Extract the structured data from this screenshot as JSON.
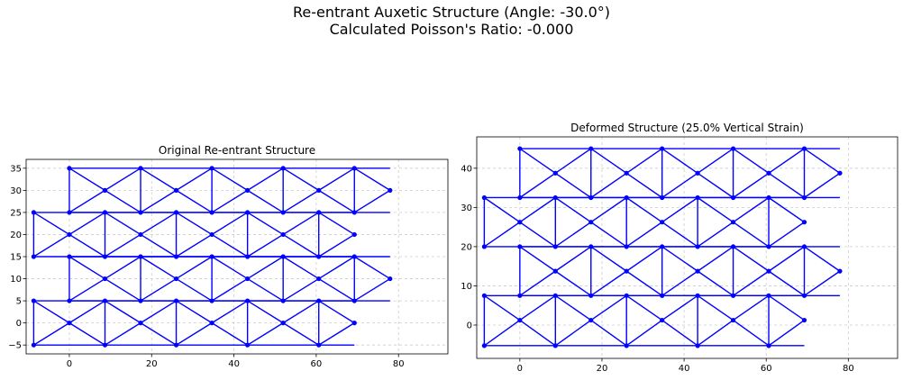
{
  "figure": {
    "title_line1": "Re-entrant Auxetic Structure (Angle: -30.0°)",
    "title_line2": "Calculated Poisson's Ratio: -0.000"
  },
  "colors": {
    "structure": "#0000ff",
    "grid": "#cccccc",
    "axis": "#000000"
  },
  "chart_data": [
    {
      "type": "scatter",
      "title": "Original Re-entrant Structure",
      "xlabel": "",
      "ylabel": "",
      "xlim": [
        -10.5,
        92
      ],
      "ylim": [
        -7,
        37
      ],
      "xticks": [
        0,
        20,
        40,
        60,
        80
      ],
      "yticks": [
        -5,
        0,
        5,
        10,
        15,
        20,
        25,
        30,
        35
      ],
      "grid": true,
      "grid_style": "dashed",
      "rows": [
        {
          "base": -5,
          "top": 5,
          "mid": 0,
          "x_start": -8.66,
          "pattern": "down"
        },
        {
          "base": 5,
          "top": 15,
          "mid": 10,
          "x_start": 0,
          "pattern": "up"
        },
        {
          "base": 15,
          "top": 25,
          "mid": 20,
          "x_start": -8.66,
          "pattern": "up"
        },
        {
          "base": 25,
          "top": 35,
          "mid": 30,
          "x_start": 0,
          "pattern": "up"
        }
      ],
      "columns": 10,
      "column_spacing": 8.66
    },
    {
      "type": "scatter",
      "title": "Deformed Structure (25.0% Vertical Strain)",
      "xlabel": "",
      "ylabel": "",
      "xlim": [
        -10.5,
        92
      ],
      "ylim": [
        -8.5,
        48
      ],
      "xticks": [
        0,
        20,
        40,
        60,
        80
      ],
      "yticks": [
        0,
        10,
        20,
        30,
        40
      ],
      "grid": true,
      "grid_style": "dashed",
      "rows": [
        {
          "base": -5.25,
          "top": 7.5,
          "mid": 1.25,
          "x_start": -8.66,
          "pattern": "down"
        },
        {
          "base": 7.5,
          "top": 20,
          "mid": 13.75,
          "x_start": 0,
          "pattern": "up"
        },
        {
          "base": 20,
          "top": 32.5,
          "mid": 26.25,
          "x_start": -8.66,
          "pattern": "up"
        },
        {
          "base": 32.5,
          "top": 45,
          "mid": 38.75,
          "x_start": 0,
          "pattern": "up"
        }
      ],
      "columns": 10,
      "column_spacing": 8.66
    }
  ]
}
